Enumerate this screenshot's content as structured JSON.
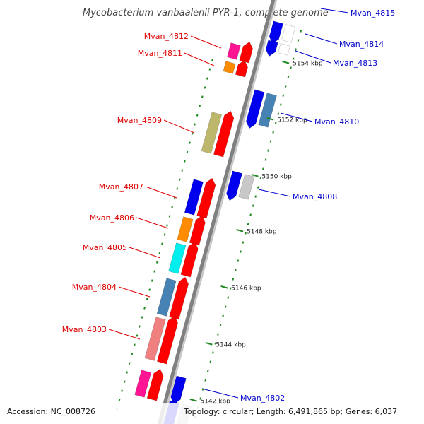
{
  "title": "Mycobacterium vanbaalenii PYR-1, complete genome",
  "footer": {
    "accession": "Accession: NC_008726",
    "summary": "Topology: circular; Length: 6,491,865 bp; Genes: 6,037"
  },
  "colors": {
    "forward_label": "#dd0000",
    "reverse_label": "#0000cc",
    "backbone": "#808080",
    "tick": "#228822"
  },
  "ticks": [
    {
      "label": "5154 kbp"
    },
    {
      "label": "5152 kbp"
    },
    {
      "label": "5150 kbp"
    },
    {
      "label": "5148 kbp"
    },
    {
      "label": "5146 kbp"
    },
    {
      "label": "5144 kbp"
    },
    {
      "label": "5142 kbp"
    }
  ],
  "genes": [
    {
      "label": "Mvan_4815",
      "strand": "reverse",
      "cog_color": "#0000ee"
    },
    {
      "label": "Mvan_4814",
      "strand": "reverse",
      "cog_color": "#0000ee"
    },
    {
      "label": "Mvan_4813",
      "strand": "reverse",
      "cog_color": "#0000ee"
    },
    {
      "label": "Mvan_4812",
      "strand": "forward",
      "cog_color": "#ff1493"
    },
    {
      "label": "Mvan_4811",
      "strand": "forward",
      "cog_color": "#ff8c00"
    },
    {
      "label": "Mvan_4810",
      "strand": "reverse",
      "cog_color": "#4682b4"
    },
    {
      "label": "Mvan_4809",
      "strand": "forward",
      "cog_color": "#bdb76b"
    },
    {
      "label": "Mvan_4808",
      "strand": "reverse",
      "cog_color": "#c8c8c8"
    },
    {
      "label": "Mvan_4807",
      "strand": "forward",
      "cog_color": "#0000ee"
    },
    {
      "label": "Mvan_4806",
      "strand": "forward",
      "cog_color": "#ff8c00"
    },
    {
      "label": "Mvan_4805",
      "strand": "forward",
      "cog_color": "#00eeee"
    },
    {
      "label": "Mvan_4804",
      "strand": "forward",
      "cog_color": "#4682b4"
    },
    {
      "label": "Mvan_4803",
      "strand": "forward",
      "cog_color": "#f08080"
    },
    {
      "label": "Mvan_4802",
      "strand": "reverse",
      "cog_color": "#0000ee"
    }
  ]
}
